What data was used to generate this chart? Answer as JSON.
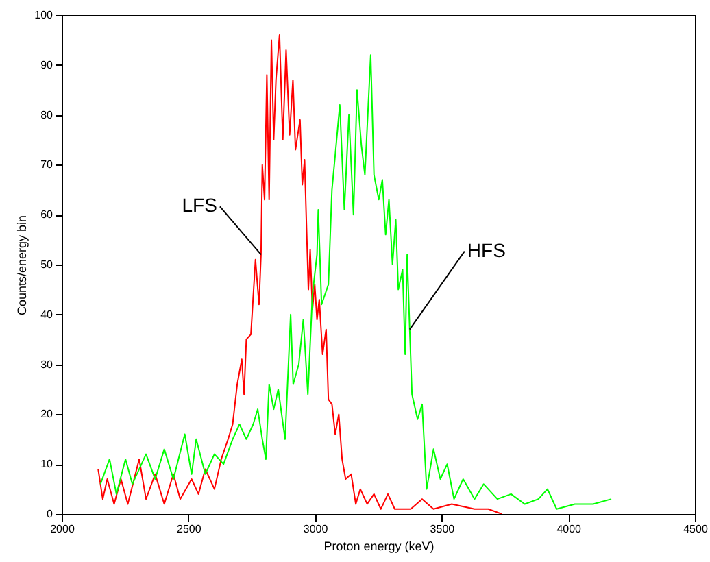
{
  "chart_data": {
    "type": "line",
    "xlabel": "Proton energy (keV)",
    "ylabel": "Counts/energy bin",
    "xlim": [
      2000,
      4500
    ],
    "xticks": [
      2000,
      2500,
      3000,
      3500,
      4000,
      4500
    ],
    "ylim": [
      0,
      100
    ],
    "yticks": [
      0,
      10,
      20,
      30,
      40,
      50,
      60,
      70,
      80,
      90,
      100
    ],
    "grid": false,
    "marker": "none",
    "line_style": "solid",
    "annotations": [
      {
        "text": "LFS",
        "x": 2787,
        "y": 52
      },
      {
        "text": "HFS",
        "x": 3374,
        "y": 37
      }
    ],
    "series": [
      {
        "color": "#ff0000",
        "x": [
          2144,
          2162,
          2180,
          2207,
          2234,
          2261,
          2306,
          2333,
          2369,
          2405,
          2441,
          2468,
          2513,
          2540,
          2567,
          2603,
          2630,
          2657,
          2675,
          2693,
          2711,
          2720,
          2729,
          2747,
          2765,
          2779,
          2787,
          2792,
          2801,
          2810,
          2819,
          2828,
          2837,
          2846,
          2860,
          2873,
          2886,
          2900,
          2913,
          2923,
          2941,
          2950,
          2959,
          2967,
          2974,
          2981,
          2990,
          2999,
          3008,
          3017,
          3030,
          3044,
          3053,
          3067,
          3080,
          3094,
          3107,
          3121,
          3143,
          3161,
          3179,
          3206,
          3233,
          3260,
          3288,
          3315,
          3378,
          3423,
          3468,
          3540,
          3630,
          3684,
          3738
        ],
        "values": [
          9,
          3,
          7,
          2,
          7,
          2,
          11,
          3,
          8,
          2,
          8,
          3,
          7,
          4,
          9,
          5,
          11,
          15,
          18,
          26,
          31,
          24,
          35,
          36,
          51,
          42,
          52,
          70,
          63,
          88,
          63,
          95,
          75,
          87,
          96,
          75,
          93,
          76,
          87,
          73,
          79,
          66,
          71,
          57,
          45,
          53,
          41,
          46,
          39,
          43,
          32,
          37,
          23,
          22,
          16,
          20,
          11,
          7,
          8,
          2,
          5,
          2,
          4,
          1,
          4,
          1,
          1,
          3,
          1,
          2,
          1,
          1,
          0
        ]
      },
      {
        "color": "#00ff00",
        "x": [
          2153,
          2189,
          2216,
          2252,
          2279,
          2333,
          2369,
          2405,
          2441,
          2486,
          2513,
          2531,
          2567,
          2603,
          2639,
          2675,
          2702,
          2729,
          2756,
          2774,
          2792,
          2806,
          2819,
          2837,
          2855,
          2882,
          2904,
          2914,
          2936,
          2954,
          2972,
          2990,
          3008,
          3013,
          3026,
          3053,
          3067,
          3080,
          3098,
          3116,
          3134,
          3152,
          3166,
          3183,
          3197,
          3220,
          3233,
          3252,
          3266,
          3279,
          3292,
          3306,
          3319,
          3329,
          3346,
          3356,
          3364,
          3374,
          3383,
          3405,
          3423,
          3441,
          3468,
          3495,
          3522,
          3549,
          3585,
          3630,
          3666,
          3720,
          3774,
          3828,
          3882,
          3918,
          3954,
          4026,
          4098,
          4170
        ],
        "values": [
          6,
          11,
          4,
          11,
          6,
          12,
          7,
          13,
          7,
          16,
          8,
          15,
          8,
          12,
          10,
          15,
          18,
          15,
          18,
          21,
          15,
          11,
          26,
          21,
          25,
          15,
          40,
          26,
          30,
          39,
          24,
          44,
          52,
          61,
          42,
          46,
          65,
          72,
          82,
          61,
          80,
          60,
          85,
          74,
          68,
          92,
          68,
          63,
          67,
          56,
          63,
          50,
          59,
          45,
          49,
          32,
          52,
          37,
          24,
          19,
          22,
          5,
          13,
          7,
          10,
          3,
          7,
          3,
          6,
          3,
          4,
          2,
          3,
          5,
          1,
          2,
          2,
          3
        ]
      }
    ]
  }
}
